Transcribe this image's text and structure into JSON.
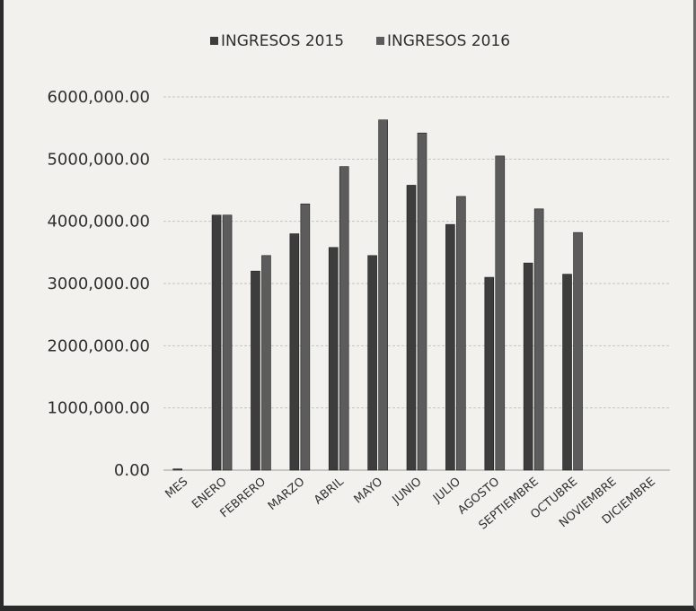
{
  "chart_data": {
    "type": "bar",
    "title": "",
    "xlabel": "",
    "ylabel": "",
    "categories": [
      "MES",
      "ENERO",
      "FEBRERO",
      "MARZO",
      "ABRIL",
      "MAYO",
      "JUNIO",
      "JULIO",
      "AGOSTO",
      "SEPTIEMBRE",
      "OCTUBRE",
      "NOVIEMBRE",
      "DICIEMBRE"
    ],
    "series": [
      {
        "name": "INGRESOS 2015",
        "color": "#3d3d3d",
        "values": [
          20000,
          4100000,
          3200000,
          3800000,
          3580000,
          3450000,
          4580000,
          3950000,
          3100000,
          3330000,
          3150000,
          0,
          0
        ]
      },
      {
        "name": "INGRESOS 2016",
        "color": "#5c5c5c",
        "values": [
          0,
          4100000,
          3450000,
          4280000,
          4880000,
          5630000,
          5420000,
          4400000,
          5050000,
          4200000,
          3820000,
          0,
          0
        ]
      }
    ],
    "yticks": [
      "0.00",
      "1000,000.00",
      "2000,000.00",
      "3000,000.00",
      "4000,000.00",
      "5000,000.00",
      "6000,000.00"
    ],
    "ylim": [
      0,
      6000000
    ],
    "grid": true,
    "legend_position": "top"
  }
}
